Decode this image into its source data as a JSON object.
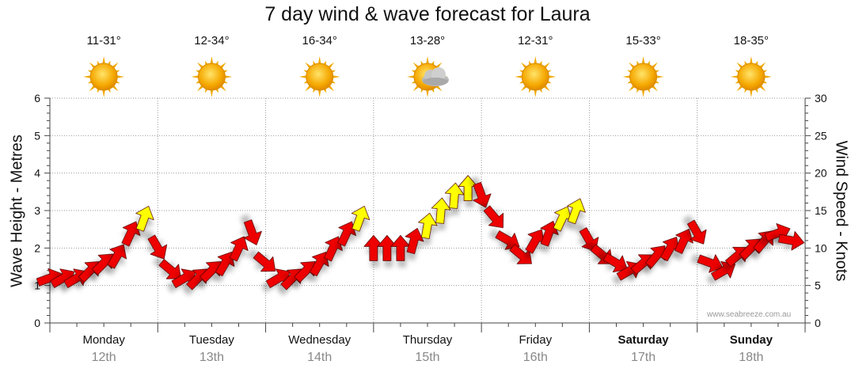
{
  "title": "7 day wind & wave forecast for Laura",
  "days": [
    {
      "name": "Monday",
      "date": "12th",
      "temp": "11-31°",
      "weather_icon": "sunny-icon",
      "bold": false
    },
    {
      "name": "Tuesday",
      "date": "13th",
      "temp": "12-34°",
      "weather_icon": "sunny-icon",
      "bold": false
    },
    {
      "name": "Wednesday",
      "date": "14th",
      "temp": "16-34°",
      "weather_icon": "sunny-icon",
      "bold": false
    },
    {
      "name": "Thursday",
      "date": "15th",
      "temp": "13-28°",
      "weather_icon": "partly-cloudy-icon",
      "bold": false
    },
    {
      "name": "Friday",
      "date": "16th",
      "temp": "12-31°",
      "weather_icon": "sunny-icon",
      "bold": false
    },
    {
      "name": "Saturday",
      "date": "17th",
      "temp": "15-33°",
      "weather_icon": "sunny-icon",
      "bold": true
    },
    {
      "name": "Sunday",
      "date": "18th",
      "temp": "18-35°",
      "weather_icon": "sunny-icon",
      "bold": true
    }
  ],
  "watermark": "www.seabreeze.com.au",
  "colors": {
    "strong_wind": "#ee0000",
    "light_wind": "#ffff00",
    "grid": "#999999"
  },
  "chart_data": {
    "type": "line",
    "title": "7 day wind & wave forecast for Laura",
    "ylabel": "Wave Height - Metres",
    "y2label": "Wind Speed - Knots",
    "ylim": [
      0,
      6
    ],
    "y2lim": [
      0,
      30
    ],
    "yticks": [
      "0",
      "1",
      "2",
      "3",
      "4",
      "5",
      "6"
    ],
    "y2ticks": [
      "0",
      "5",
      "10",
      "15",
      "20",
      "25",
      "30"
    ],
    "grid": true,
    "x_unit": "hours from Monday 00:00 (3-hourly)",
    "series": [
      {
        "name": "Wind Speed",
        "axis": "right",
        "marker": "arrow (direction of travel), yellow when lighter",
        "x": [
          0,
          3,
          6,
          9,
          12,
          15,
          18,
          21,
          24,
          27,
          30,
          33,
          36,
          39,
          42,
          45,
          48,
          51,
          54,
          57,
          60,
          63,
          66,
          69,
          72,
          75,
          78,
          81,
          84,
          87,
          90,
          93,
          96,
          99,
          102,
          105,
          108,
          111,
          114,
          117,
          120,
          123,
          126,
          129,
          132,
          135,
          138,
          141,
          144,
          147,
          150,
          153,
          156,
          159,
          162,
          165
        ],
        "values": [
          6,
          6,
          6,
          7,
          8,
          9,
          12,
          14,
          10,
          7,
          6,
          6,
          7,
          8,
          10,
          12,
          8,
          6,
          6,
          7,
          8,
          10,
          12,
          14,
          10,
          10,
          10,
          11,
          13,
          15,
          17,
          18,
          17,
          14,
          11,
          9,
          11,
          12,
          14,
          15,
          11,
          9,
          8,
          7,
          8,
          9,
          10,
          11,
          12,
          8,
          7,
          9,
          10,
          11,
          12,
          11
        ],
        "direction_deg": [
          70,
          60,
          60,
          45,
          45,
          30,
          25,
          20,
          150,
          130,
          60,
          45,
          45,
          30,
          25,
          160,
          130,
          60,
          45,
          45,
          30,
          25,
          25,
          20,
          0,
          0,
          0,
          15,
          10,
          5,
          5,
          0,
          160,
          140,
          120,
          130,
          30,
          20,
          25,
          20,
          150,
          130,
          120,
          60,
          50,
          40,
          30,
          25,
          150,
          110,
          60,
          50,
          45,
          40,
          70,
          100
        ]
      }
    ]
  }
}
